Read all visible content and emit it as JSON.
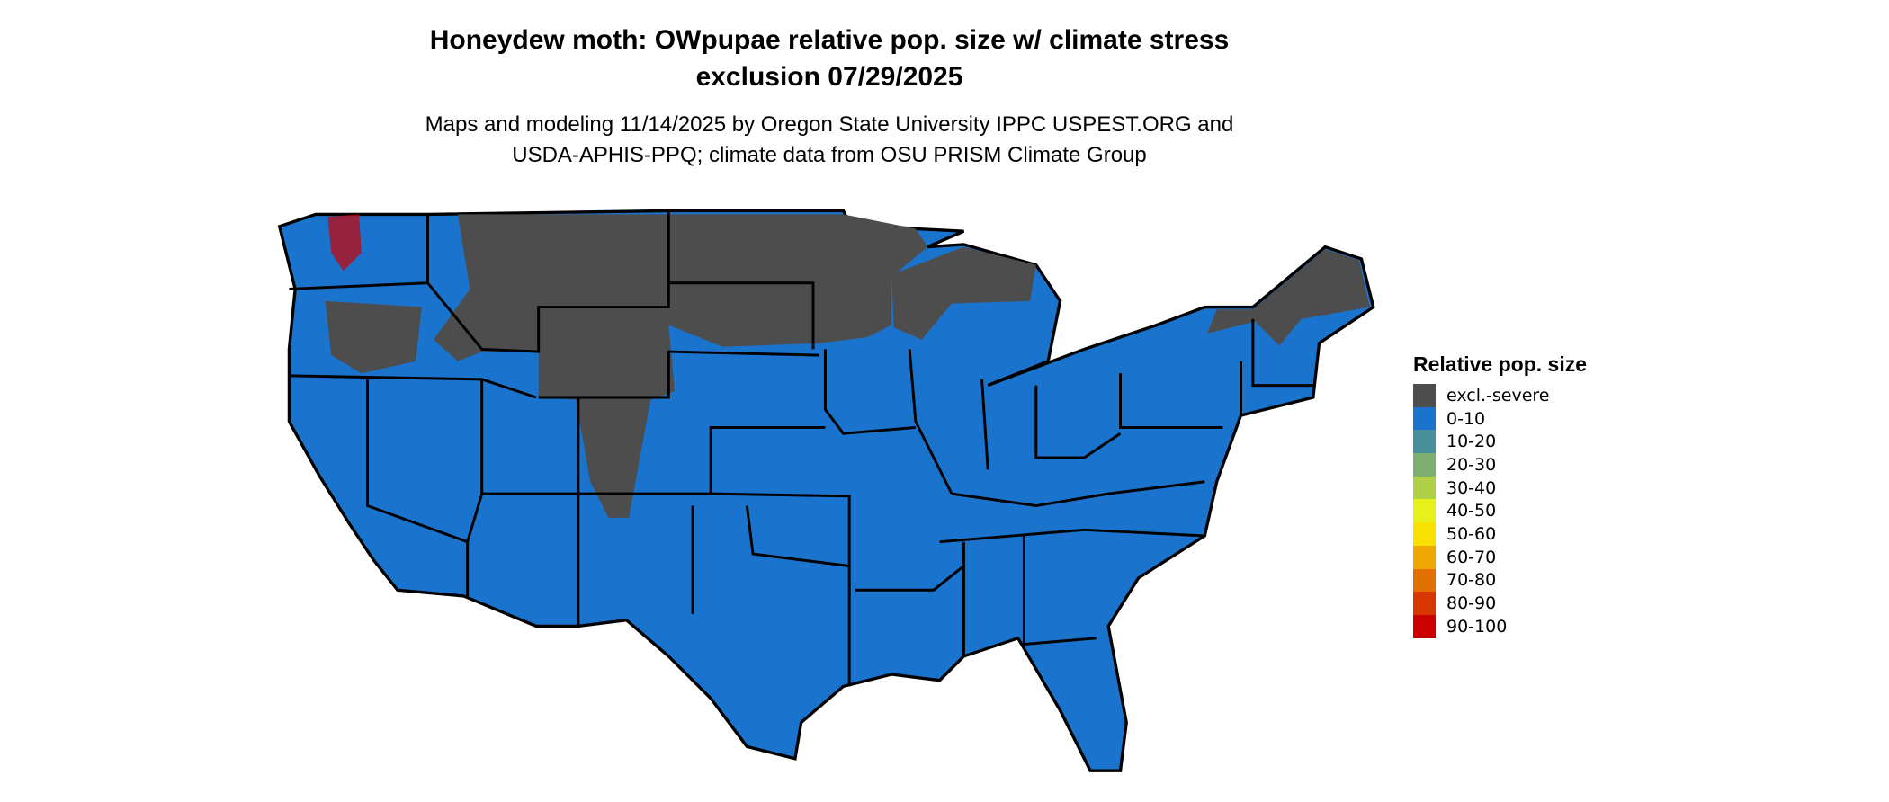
{
  "title_line1": "Honeydew moth: OWpupae relative pop. size w/ climate stress",
  "title_line2": "exclusion 07/29/2025",
  "subtitle_line1": "Maps and modeling 11/14/2025 by Oregon State University IPPC USPEST.ORG and",
  "subtitle_line2": "USDA-APHIS-PPQ; climate data from OSU PRISM Climate Group",
  "map": {
    "region": "Contiguous United States",
    "state_boundaries": true,
    "dominant_class": "0-10",
    "excluded_regions_class": "excl.-severe"
  },
  "legend": {
    "title": "Relative pop. size",
    "items": [
      {
        "label": "excl.-severe",
        "color": "#4d4d4d"
      },
      {
        "label": "0-10",
        "color": "#1a73cc"
      },
      {
        "label": "10-20",
        "color": "#488f9c"
      },
      {
        "label": "20-30",
        "color": "#7daf72"
      },
      {
        "label": "30-40",
        "color": "#b0d048"
      },
      {
        "label": "40-50",
        "color": "#e6f01a"
      },
      {
        "label": "50-60",
        "color": "#f8e000"
      },
      {
        "label": "60-70",
        "color": "#eea800"
      },
      {
        "label": "70-80",
        "color": "#e27000"
      },
      {
        "label": "80-90",
        "color": "#d83800"
      },
      {
        "label": "90-100",
        "color": "#cc0000"
      }
    ]
  }
}
